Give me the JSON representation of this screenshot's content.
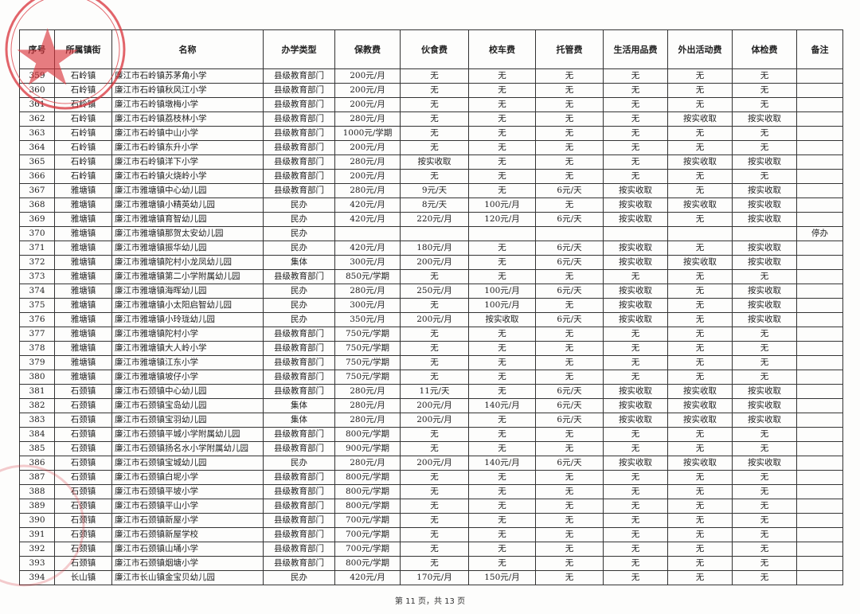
{
  "table": {
    "headers": [
      "序号",
      "所属镇街",
      "名称",
      "办学类型",
      "保教费",
      "伙食费",
      "校车费",
      "托管费",
      "生活用品费",
      "外出活动费",
      "体检费",
      "备注"
    ],
    "rows": [
      [
        "359",
        "石岭镇",
        "廉江市石岭镇苏茅角小学",
        "县级教育部门",
        "200元/月",
        "无",
        "无",
        "无",
        "无",
        "无",
        "无",
        ""
      ],
      [
        "360",
        "石岭镇",
        "廉江市石岭镇秋风江小学",
        "县级教育部门",
        "200元/月",
        "无",
        "无",
        "无",
        "无",
        "无",
        "无",
        ""
      ],
      [
        "361",
        "石岭镇",
        "廉江市石岭镇墩梅小学",
        "县级教育部门",
        "200元/月",
        "无",
        "无",
        "无",
        "无",
        "无",
        "无",
        ""
      ],
      [
        "362",
        "石岭镇",
        "廉江市石岭镇荔枝林小学",
        "县级教育部门",
        "280元/月",
        "无",
        "无",
        "无",
        "无",
        "按实收取",
        "按实收取",
        ""
      ],
      [
        "363",
        "石岭镇",
        "廉江市石岭镇中山小学",
        "县级教育部门",
        "1000元/学期",
        "无",
        "无",
        "无",
        "无",
        "无",
        "无",
        ""
      ],
      [
        "364",
        "石岭镇",
        "廉江市石岭镇东升小学",
        "县级教育部门",
        "200元/月",
        "无",
        "无",
        "无",
        "无",
        "无",
        "无",
        ""
      ],
      [
        "365",
        "石岭镇",
        "廉江市石岭镇洋下小学",
        "县级教育部门",
        "280元/月",
        "按实收取",
        "无",
        "无",
        "无",
        "按实收取",
        "按实收取",
        ""
      ],
      [
        "366",
        "石岭镇",
        "廉江市石岭镇火烧岭小学",
        "县级教育部门",
        "200元/月",
        "无",
        "无",
        "无",
        "无",
        "无",
        "无",
        ""
      ],
      [
        "367",
        "雅塘镇",
        "廉江市雅塘镇中心幼儿园",
        "县级教育部门",
        "280元/月",
        "9元/天",
        "无",
        "6元/天",
        "按实收取",
        "无",
        "按实收取",
        ""
      ],
      [
        "368",
        "雅塘镇",
        "廉江市雅塘镇小精英幼儿园",
        "民办",
        "420元/月",
        "8元/天",
        "100元/月",
        "无",
        "按实收取",
        "按实收取",
        "按实收取",
        ""
      ],
      [
        "369",
        "雅塘镇",
        "廉江市雅塘镇育智幼儿园",
        "民办",
        "420元/月",
        "220元/月",
        "120元/月",
        "6元/天",
        "按实收取",
        "无",
        "按实收取",
        ""
      ],
      [
        "370",
        "雅塘镇",
        "廉江市雅塘镇那贺太安幼儿园",
        "民办",
        "",
        "",
        "",
        "",
        "",
        "",
        "",
        "停办"
      ],
      [
        "371",
        "雅塘镇",
        "廉江市雅塘镇振华幼儿园",
        "民办",
        "420元/月",
        "180元/月",
        "无",
        "6元/天",
        "按实收取",
        "无",
        "按实收取",
        ""
      ],
      [
        "372",
        "雅塘镇",
        "廉江市雅塘镇陀村小龙凤幼儿园",
        "集体",
        "300元/月",
        "200元/月",
        "无",
        "6元/天",
        "按实收取",
        "按实收取",
        "按实收取",
        ""
      ],
      [
        "373",
        "雅塘镇",
        "廉江市雅塘镇第二小学附属幼儿园",
        "县级教育部门",
        "850元/学期",
        "无",
        "无",
        "无",
        "无",
        "无",
        "无",
        ""
      ],
      [
        "374",
        "雅塘镇",
        "廉江市雅塘镇海晖幼儿园",
        "民办",
        "280元/月",
        "250元/月",
        "100元/月",
        "6元/天",
        "按实收取",
        "无",
        "按实收取",
        ""
      ],
      [
        "375",
        "雅塘镇",
        "廉江市雅塘镇小太阳启智幼儿园",
        "民办",
        "300元/月",
        "无",
        "100元/月",
        "无",
        "按实收取",
        "无",
        "按实收取",
        ""
      ],
      [
        "376",
        "雅塘镇",
        "廉江市雅塘镇小玲珑幼儿园",
        "民办",
        "350元/月",
        "200元/月",
        "按实收取",
        "6元/天",
        "按实收取",
        "无",
        "按实收取",
        ""
      ],
      [
        "377",
        "雅塘镇",
        "廉江市雅塘镇陀村小学",
        "县级教育部门",
        "750元/学期",
        "无",
        "无",
        "无",
        "无",
        "无",
        "无",
        ""
      ],
      [
        "378",
        "雅塘镇",
        "廉江市雅塘镇大人岭小学",
        "县级教育部门",
        "750元/学期",
        "无",
        "无",
        "无",
        "无",
        "无",
        "无",
        ""
      ],
      [
        "379",
        "雅塘镇",
        "廉江市雅塘镇江东小学",
        "县级教育部门",
        "750元/学期",
        "无",
        "无",
        "无",
        "无",
        "无",
        "无",
        ""
      ],
      [
        "380",
        "雅塘镇",
        "廉江市雅塘镇坡仔小学",
        "县级教育部门",
        "750元/学期",
        "无",
        "无",
        "无",
        "无",
        "无",
        "无",
        ""
      ],
      [
        "381",
        "石颈镇",
        "廉江市石颈镇中心幼儿园",
        "县级教育部门",
        "280元/月",
        "11元/天",
        "无",
        "6元/天",
        "按实收取",
        "按实收取",
        "按实收取",
        ""
      ],
      [
        "382",
        "石颈镇",
        "廉江市石颈镇宝岛幼儿园",
        "集体",
        "280元/月",
        "200元/月",
        "140元/月",
        "6元/天",
        "按实收取",
        "按实收取",
        "按实收取",
        ""
      ],
      [
        "383",
        "石颈镇",
        "廉江市石颈镇宝羽幼儿园",
        "集体",
        "280元/月",
        "200元/月",
        "无",
        "6元/天",
        "按实收取",
        "按实收取",
        "按实收取",
        ""
      ],
      [
        "384",
        "石颈镇",
        "廉江市石颈镇平城小学附属幼儿园",
        "县级教育部门",
        "800元/学期",
        "无",
        "无",
        "无",
        "无",
        "无",
        "无",
        ""
      ],
      [
        "385",
        "石颈镇",
        "廉江市石颈镇扬名水小学附属幼儿园",
        "县级教育部门",
        "900元/学期",
        "无",
        "无",
        "无",
        "无",
        "无",
        "无",
        ""
      ],
      [
        "386",
        "石颈镇",
        "廉江市石颈镇宝城幼儿园",
        "民办",
        "280元/月",
        "200元/月",
        "140元/月",
        "6元/天",
        "按实收取",
        "按实收取",
        "按实收取",
        ""
      ],
      [
        "387",
        "石颈镇",
        "廉江市石颈镇白坭小学",
        "县级教育部门",
        "800元/学期",
        "无",
        "无",
        "无",
        "无",
        "无",
        "无",
        ""
      ],
      [
        "388",
        "石颈镇",
        "廉江市石颈镇平坡小学",
        "县级教育部门",
        "800元/学期",
        "无",
        "无",
        "无",
        "无",
        "无",
        "无",
        ""
      ],
      [
        "389",
        "石颈镇",
        "廉江市石颈镇平山小学",
        "县级教育部门",
        "800元/学期",
        "无",
        "无",
        "无",
        "无",
        "无",
        "无",
        ""
      ],
      [
        "390",
        "石颈镇",
        "廉江市石颈镇新屋小学",
        "县级教育部门",
        "700元/学期",
        "无",
        "无",
        "无",
        "无",
        "无",
        "无",
        ""
      ],
      [
        "391",
        "石颈镇",
        "廉江市石颈镇新屋学校",
        "县级教育部门",
        "700元/学期",
        "无",
        "无",
        "无",
        "无",
        "无",
        "无",
        ""
      ],
      [
        "392",
        "石颈镇",
        "廉江市石颈镇山埇小学",
        "县级教育部门",
        "700元/学期",
        "无",
        "无",
        "无",
        "无",
        "无",
        "无",
        ""
      ],
      [
        "393",
        "石颈镇",
        "廉江市石颈镇烟塘小学",
        "县级教育部门",
        "800元/学期",
        "无",
        "无",
        "无",
        "无",
        "无",
        "无",
        ""
      ],
      [
        "394",
        "长山镇",
        "廉江市长山镇金宝贝幼儿园",
        "民办",
        "420元/月",
        "170元/月",
        "150元/月",
        "无",
        "无",
        "无",
        "无",
        ""
      ]
    ]
  },
  "footer": {
    "page_label": "第 11 页，共 13 页"
  },
  "colors": {
    "stamp": "#d9323a",
    "grid": "#333333"
  }
}
